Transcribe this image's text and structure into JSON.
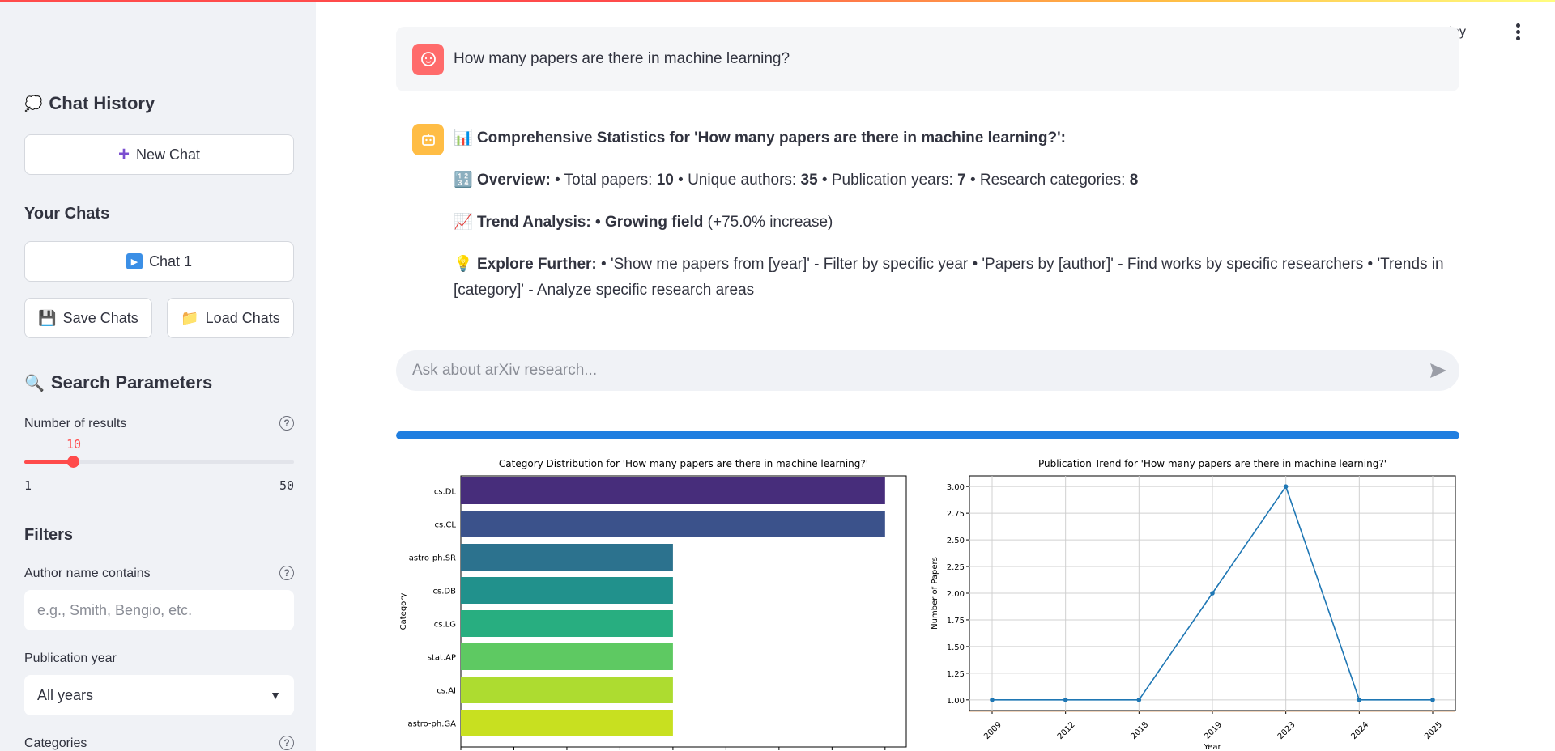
{
  "sidebar": {
    "chat_history_title": "Chat History",
    "new_chat": "New Chat",
    "your_chats_title": "Your Chats",
    "chats": [
      "Chat 1"
    ],
    "save_chats": "Save Chats",
    "load_chats": "Load Chats",
    "search_params_title": "Search Parameters",
    "num_results_label": "Number of results",
    "num_results_value": "10",
    "num_results_min": "1",
    "num_results_max": "50",
    "filters_title": "Filters",
    "author_label": "Author name contains",
    "author_placeholder": "e.g., Smith, Bengio, etc.",
    "year_label": "Publication year",
    "year_value": "All years",
    "categories_label": "Categories"
  },
  "header": {
    "deploy": "Deploy"
  },
  "user_message": "How many papers are there in machine learning?",
  "bot": {
    "title": "Comprehensive Statistics for 'How many papers are there in machine learning?':",
    "overview_label": "Overview:",
    "overview_parts": [
      "• Total papers: ",
      "10",
      " • Unique authors: ",
      "35",
      " • Publication years: ",
      "7",
      " • Research categories: ",
      "8"
    ],
    "trend_label": "Trend Analysis:",
    "trend_value": "• Growing field",
    "trend_extra": "(+75.0% increase)",
    "explore_label": "Explore Further:",
    "explore_text": "• 'Show me papers from [year]' - Filter by specific year • 'Papers by [author]' - Find works by specific researchers • 'Trends in [category]' - Analyze specific research areas"
  },
  "chat_input_placeholder": "Ask about arXiv research...",
  "progress": 1.0,
  "chart_data": [
    {
      "type": "bar",
      "orientation": "horizontal",
      "title": "Category Distribution for 'How many papers are there in machine learning?'",
      "xlabel": "",
      "ylabel": "Category",
      "categories": [
        "cs.DL",
        "cs.CL",
        "astro-ph.SR",
        "cs.DB",
        "cs.LG",
        "stat.AP",
        "cs.AI",
        "astro-ph.GA"
      ],
      "values": [
        2,
        2,
        1,
        1,
        1,
        1,
        1,
        1
      ],
      "xlim": [
        0,
        2.1
      ],
      "xticks": [
        "0.00",
        "0.25",
        "0.50",
        "0.75",
        "1.00",
        "1.25",
        "1.50",
        "1.75",
        "2.00"
      ],
      "colors": [
        "#472d7b",
        "#3b528b",
        "#2c728e",
        "#21918c",
        "#28ae80",
        "#5ec962",
        "#addc30",
        "#c8e020"
      ]
    },
    {
      "type": "line",
      "title": "Publication Trend for 'How many papers are there in machine learning?'",
      "xlabel": "Year",
      "ylabel": "Number of Papers",
      "x": [
        "2009",
        "2012",
        "2018",
        "2019",
        "2023",
        "2024",
        "2025"
      ],
      "y": [
        1,
        1,
        1,
        2,
        3,
        1,
        1
      ],
      "ylim": [
        0.9,
        3.1
      ],
      "yticks": [
        "1.00",
        "1.25",
        "1.50",
        "1.75",
        "2.00",
        "2.25",
        "2.50",
        "2.75",
        "3.00"
      ],
      "grid": true,
      "color": "#1f77b4"
    }
  ]
}
